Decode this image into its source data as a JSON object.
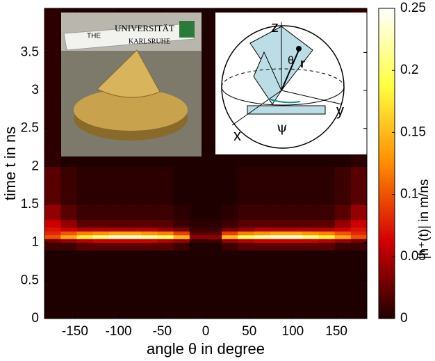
{
  "chart_data": {
    "type": "heatmap",
    "xlabel": "angle θ in degree",
    "ylabel": "time t in ns",
    "colorbar_label": "|h⁺(t)| in m/ns",
    "xlim": [
      -185,
      185
    ],
    "ylim": [
      0,
      4.08
    ],
    "xticks": [
      -150,
      -100,
      -50,
      0,
      50,
      100,
      150
    ],
    "yticks": [
      0,
      0.5,
      1,
      1.5,
      2,
      2.5,
      3,
      3.5
    ],
    "clim": [
      0,
      0.25
    ],
    "cticks": [
      0,
      0.05,
      0.1,
      0.15,
      0.2,
      0.25
    ],
    "colormap": [
      "#1e0000",
      "#d40000",
      "#ff8c00",
      "#ffff40",
      "#ffffff"
    ],
    "xbins": [
      -185,
      -166.5,
      -148,
      -129.5,
      -111,
      -92.5,
      -74,
      -55.5,
      -37,
      -18.5,
      0,
      18.5,
      37,
      55.5,
      74,
      92.5,
      111,
      129.5,
      148,
      166.5,
      185
    ],
    "ybins": [
      0,
      0.9,
      1.0,
      1.05,
      1.1,
      1.15,
      1.2,
      1.3,
      1.5,
      2.0,
      4.08
    ],
    "z": [
      [
        0,
        0,
        0,
        0,
        0,
        0,
        0,
        0,
        0,
        0,
        0,
        0,
        0,
        0,
        0,
        0,
        0,
        0,
        0,
        0
      ],
      [
        0.01,
        0.01,
        0.02,
        0.02,
        0.02,
        0.02,
        0.02,
        0.02,
        0.01,
        0,
        0,
        0.01,
        0.02,
        0.02,
        0.02,
        0.02,
        0.02,
        0.02,
        0.01,
        0.01
      ],
      [
        0.03,
        0.04,
        0.05,
        0.06,
        0.06,
        0.06,
        0.06,
        0.05,
        0.04,
        0.01,
        0.01,
        0.04,
        0.05,
        0.06,
        0.06,
        0.06,
        0.06,
        0.05,
        0.04,
        0.03
      ],
      [
        0.1,
        0.14,
        0.18,
        0.21,
        0.23,
        0.23,
        0.22,
        0.2,
        0.15,
        0.04,
        0.04,
        0.15,
        0.2,
        0.22,
        0.23,
        0.23,
        0.21,
        0.18,
        0.14,
        0.1
      ],
      [
        0.08,
        0.1,
        0.12,
        0.13,
        0.14,
        0.14,
        0.13,
        0.12,
        0.09,
        0.02,
        0.02,
        0.09,
        0.12,
        0.13,
        0.14,
        0.14,
        0.13,
        0.12,
        0.1,
        0.08
      ],
      [
        0.07,
        0.06,
        0.05,
        0.05,
        0.05,
        0.05,
        0.05,
        0.04,
        0.03,
        0.01,
        0.01,
        0.03,
        0.04,
        0.05,
        0.05,
        0.05,
        0.05,
        0.05,
        0.06,
        0.07
      ],
      [
        0.06,
        0.04,
        0.02,
        0.02,
        0.02,
        0.02,
        0.02,
        0.02,
        0.01,
        0.005,
        0.005,
        0.01,
        0.02,
        0.02,
        0.02,
        0.02,
        0.02,
        0.02,
        0.04,
        0.06
      ],
      [
        0.04,
        0.02,
        0.01,
        0.01,
        0.01,
        0.01,
        0.01,
        0.01,
        0.005,
        0,
        0,
        0.005,
        0.01,
        0.01,
        0.01,
        0.01,
        0.01,
        0.01,
        0.02,
        0.04
      ],
      [
        0.02,
        0.01,
        0.005,
        0.005,
        0.005,
        0.005,
        0.005,
        0.005,
        0,
        0,
        0,
        0,
        0.005,
        0.005,
        0.005,
        0.005,
        0.005,
        0.005,
        0.01,
        0.02
      ],
      [
        0.005,
        0,
        0,
        0,
        0,
        0,
        0,
        0,
        0,
        0,
        0,
        0,
        0,
        0,
        0,
        0,
        0,
        0,
        0,
        0.005
      ]
    ],
    "inset_photo": {
      "labels": [
        "UNIVERSITÄT",
        "KARLSRUHE",
        "THE"
      ]
    },
    "inset_diagram": {
      "labels": [
        "z",
        "θ",
        "r",
        "y",
        "x",
        "ψ"
      ]
    }
  }
}
